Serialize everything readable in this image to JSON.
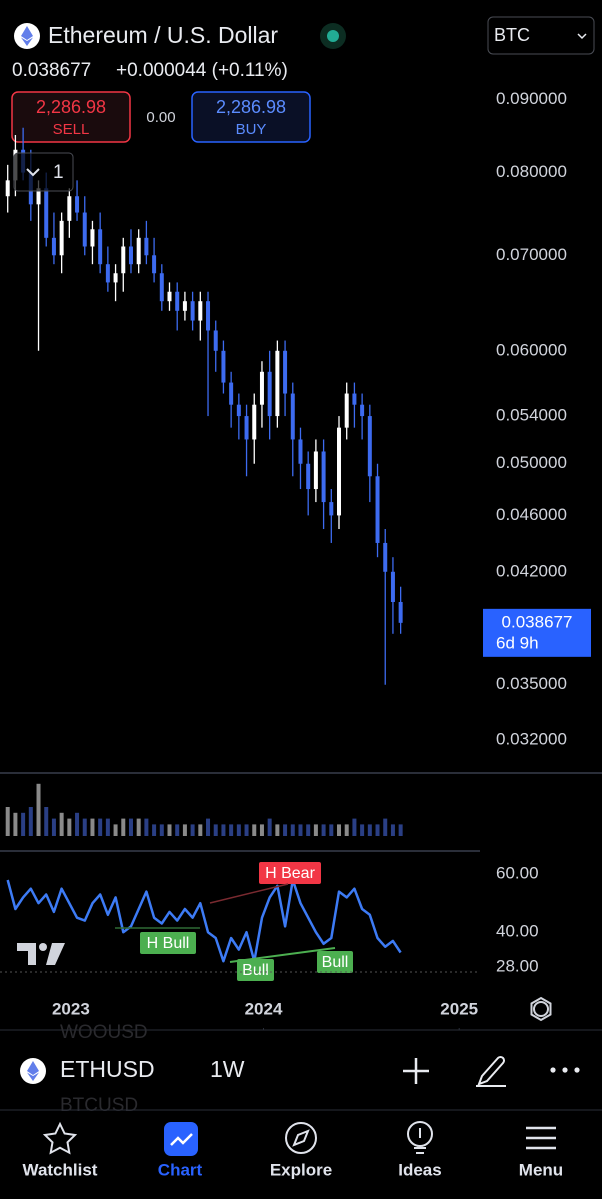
{
  "header": {
    "title": "Ethereum / U.S. Dollar",
    "currency": "BTC",
    "change": "+0.000044 (+0.11%)",
    "sell_price": "2,286.98",
    "sell_label": "SELL",
    "spread": "0.00",
    "buy_price": "2,286.98",
    "buy_label": "BUY",
    "interval_button": "1"
  },
  "chart_data": [
    {
      "type": "candlestick",
      "log_scale": true,
      "up_color": "#ffffff",
      "down_color": "#3d6bf0",
      "x": [
        0,
        1,
        2,
        3,
        4,
        5,
        6,
        7,
        8,
        9,
        10,
        11,
        12,
        13,
        14,
        15,
        16,
        17,
        18,
        19,
        20,
        21,
        22,
        23,
        24,
        25,
        26,
        27,
        28,
        29,
        30,
        31,
        32,
        33,
        34,
        35,
        36,
        37,
        38,
        39,
        40,
        41,
        42,
        43,
        44,
        45,
        46,
        47,
        48,
        49,
        50,
        51
      ],
      "open": [
        0.077,
        0.079,
        0.083,
        0.08,
        0.076,
        0.078,
        0.072,
        0.07,
        0.074,
        0.077,
        0.075,
        0.071,
        0.073,
        0.069,
        0.067,
        0.068,
        0.071,
        0.069,
        0.072,
        0.07,
        0.068,
        0.065,
        0.066,
        0.064,
        0.065,
        0.063,
        0.065,
        0.062,
        0.06,
        0.057,
        0.055,
        0.054,
        0.052,
        0.055,
        0.058,
        0.054,
        0.06,
        0.056,
        0.052,
        0.05,
        0.048,
        0.051,
        0.047,
        0.046,
        0.053,
        0.056,
        0.055,
        0.054,
        0.049,
        0.044,
        0.042,
        0.04
      ],
      "high": [
        0.081,
        0.085,
        0.086,
        0.083,
        0.079,
        0.08,
        0.075,
        0.075,
        0.078,
        0.079,
        0.077,
        0.074,
        0.075,
        0.071,
        0.069,
        0.072,
        0.073,
        0.073,
        0.074,
        0.072,
        0.069,
        0.067,
        0.067,
        0.066,
        0.066,
        0.066,
        0.066,
        0.063,
        0.061,
        0.058,
        0.056,
        0.055,
        0.056,
        0.059,
        0.06,
        0.061,
        0.061,
        0.057,
        0.053,
        0.051,
        0.052,
        0.052,
        0.048,
        0.054,
        0.057,
        0.057,
        0.056,
        0.055,
        0.05,
        0.045,
        0.043,
        0.041
      ],
      "low": [
        0.075,
        0.077,
        0.079,
        0.074,
        0.06,
        0.071,
        0.069,
        0.068,
        0.072,
        0.074,
        0.07,
        0.069,
        0.068,
        0.066,
        0.065,
        0.066,
        0.068,
        0.068,
        0.069,
        0.067,
        0.064,
        0.064,
        0.062,
        0.063,
        0.062,
        0.061,
        0.054,
        0.058,
        0.056,
        0.053,
        0.052,
        0.049,
        0.05,
        0.053,
        0.052,
        0.053,
        0.054,
        0.049,
        0.048,
        0.046,
        0.047,
        0.045,
        0.044,
        0.045,
        0.052,
        0.053,
        0.052,
        0.047,
        0.043,
        0.035,
        0.038,
        0.038
      ],
      "close": [
        0.079,
        0.083,
        0.08,
        0.076,
        0.078,
        0.072,
        0.07,
        0.074,
        0.077,
        0.075,
        0.071,
        0.073,
        0.069,
        0.067,
        0.068,
        0.071,
        0.069,
        0.072,
        0.07,
        0.068,
        0.065,
        0.066,
        0.064,
        0.065,
        0.063,
        0.065,
        0.062,
        0.06,
        0.057,
        0.055,
        0.054,
        0.052,
        0.055,
        0.058,
        0.054,
        0.06,
        0.056,
        0.052,
        0.05,
        0.048,
        0.051,
        0.047,
        0.046,
        0.053,
        0.056,
        0.055,
        0.054,
        0.049,
        0.044,
        0.042,
        0.04,
        0.038677
      ],
      "xlim": [
        -1,
        61.3
      ],
      "xticks": [
        {
          "value": 8.2,
          "label": "2023"
        },
        {
          "value": 33.2,
          "label": "2024"
        },
        {
          "value": 58.6,
          "label": "2025"
        }
      ],
      "ylim": [
        0.0305,
        0.104
      ],
      "yticks": [
        {
          "value": 0.032,
          "label": "0.032000"
        },
        {
          "value": 0.035,
          "label": "0.035000"
        },
        {
          "value": 0.042,
          "label": "0.042000"
        },
        {
          "value": 0.046,
          "label": "0.046000"
        },
        {
          "value": 0.05,
          "label": "0.050000"
        },
        {
          "value": 0.054,
          "label": "0.054000"
        },
        {
          "value": 0.06,
          "label": "0.060000"
        },
        {
          "value": 0.07,
          "label": "0.070000"
        },
        {
          "value": 0.08,
          "label": "0.080000"
        },
        {
          "value": 0.09,
          "label": "0.090000"
        }
      ],
      "countdown": "6d 9h",
      "price_label_color": "#2962ff"
    },
    {
      "type": "bar",
      "x": [
        0,
        1,
        2,
        3,
        4,
        5,
        6,
        7,
        8,
        9,
        10,
        11,
        12,
        13,
        14,
        15,
        16,
        17,
        18,
        19,
        20,
        21,
        22,
        23,
        24,
        25,
        26,
        27,
        28,
        29,
        30,
        31,
        32,
        33,
        34,
        35,
        36,
        37,
        38,
        39,
        40,
        41,
        42,
        43,
        44,
        45,
        46,
        47,
        48,
        49,
        50,
        51
      ],
      "values": [
        5,
        4,
        4,
        5,
        9,
        5,
        3,
        4,
        3,
        4,
        3,
        3,
        3,
        3,
        2,
        3,
        3,
        3,
        3,
        2,
        2,
        2,
        2,
        2,
        2,
        2,
        3,
        2,
        2,
        2,
        2,
        2,
        2,
        2,
        3,
        2,
        2,
        2,
        2,
        2,
        2,
        2,
        2,
        2,
        2,
        3,
        2,
        2,
        2,
        3,
        2,
        2
      ],
      "ylim": [
        0,
        10
      ]
    },
    {
      "type": "line",
      "color": "#3d7bf5",
      "x": [
        0,
        1,
        2,
        3,
        4,
        5,
        6,
        7,
        8,
        9,
        10,
        11,
        12,
        13,
        14,
        15,
        16,
        17,
        18,
        19,
        20,
        21,
        22,
        23,
        24,
        25,
        26,
        27,
        28,
        29,
        30,
        31,
        32,
        33,
        34,
        35,
        36,
        37,
        38,
        39,
        40,
        41,
        42,
        43,
        44,
        45,
        46,
        47,
        48,
        49,
        50,
        51
      ],
      "values": [
        58,
        48,
        52,
        55,
        50,
        53,
        47,
        55,
        50,
        45,
        44,
        50,
        53,
        46,
        52,
        40,
        42,
        48,
        54,
        45,
        43,
        47,
        44,
        48,
        45,
        50,
        40,
        38,
        30,
        38,
        34,
        40,
        30,
        45,
        52,
        56,
        42,
        58,
        50,
        45,
        40,
        36,
        38,
        54,
        52,
        55,
        48,
        46,
        38,
        35,
        37,
        33
      ],
      "ylim": [
        28,
        68
      ],
      "yticks": [
        {
          "value": 28,
          "label": "28.00"
        },
        {
          "value": 40,
          "label": "40.00"
        },
        {
          "value": 60,
          "label": "60.00"
        }
      ],
      "annotations": [
        {
          "text": "H Bear",
          "color": "#f23645"
        },
        {
          "text": "H Bull",
          "color": "#4caf50"
        },
        {
          "text": "Bull",
          "color": "#4caf50"
        },
        {
          "text": "Bull",
          "color": "#4caf50"
        }
      ]
    }
  ],
  "toolbar": {
    "symbol": "ETHUSD",
    "interval": "1W",
    "ghost_symbols": [
      "WOOUSD",
      "BTCUSD"
    ]
  },
  "nav": [
    "Watchlist",
    "Chart",
    "Explore",
    "Ideas",
    "Menu"
  ]
}
